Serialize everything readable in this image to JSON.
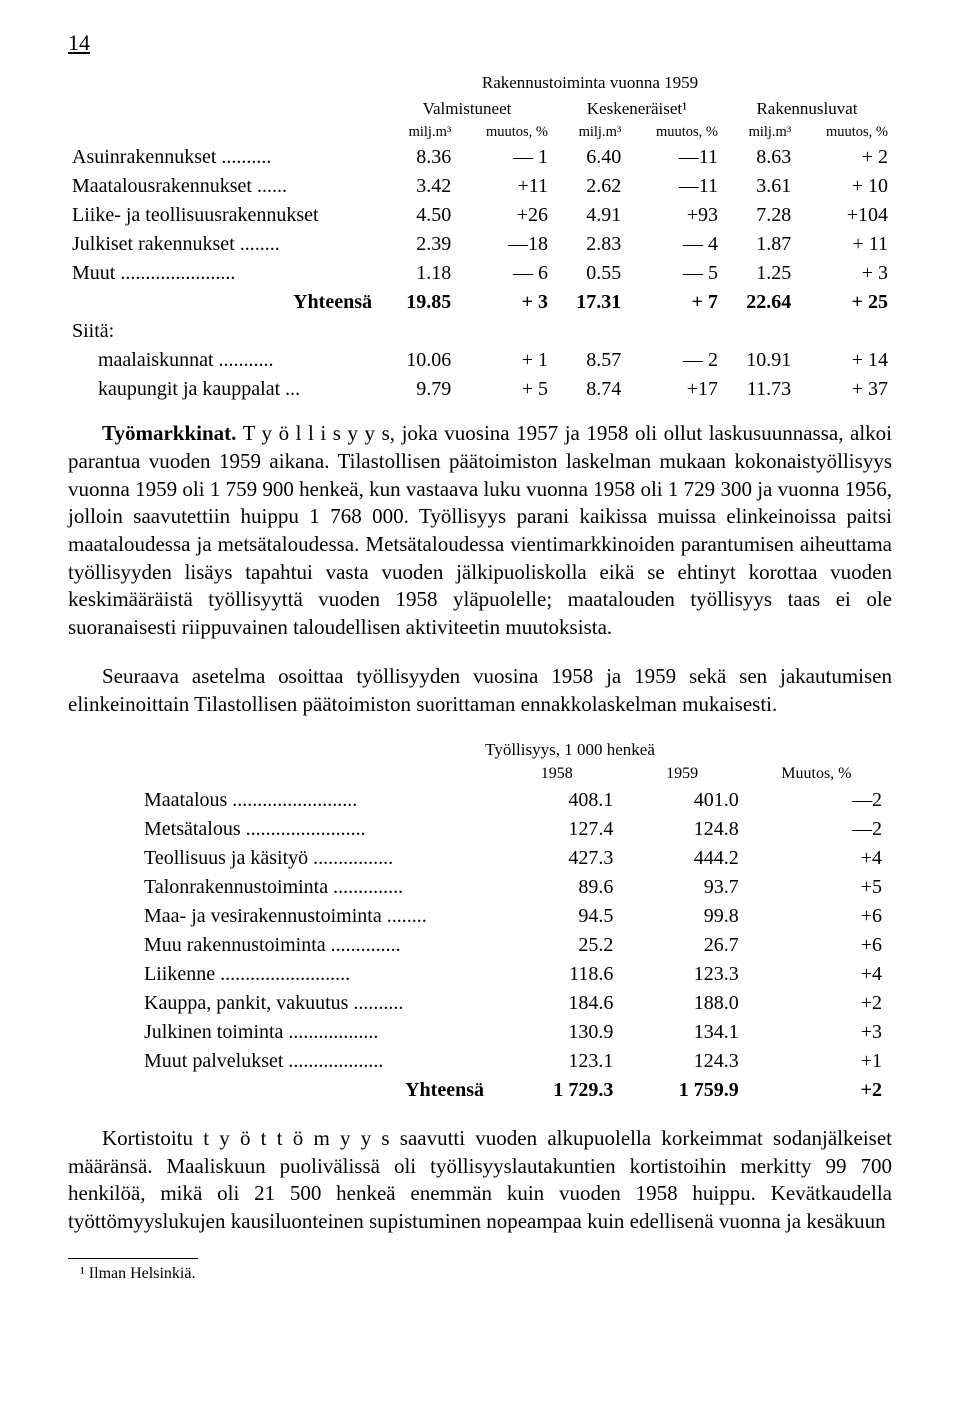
{
  "page_number": "14",
  "table1": {
    "super_title": "Rakennustoiminta vuonna 1959",
    "group_headers": [
      "Valmistuneet",
      "Keskeneräiset¹",
      "Rakennusluvat"
    ],
    "sub_headers": [
      "milj.m³",
      "muutos, %",
      "milj.m³",
      "muutos, %",
      "milj.m³",
      "muutos, %"
    ],
    "rows": [
      {
        "label": "Asuinrakennukset",
        "dots": " ..........",
        "v": [
          "8.36",
          "— 1",
          "6.40",
          "—11",
          "8.63",
          "+   2"
        ]
      },
      {
        "label": "Maatalousrakennukset",
        "dots": " ......",
        "v": [
          "3.42",
          "+11",
          "2.62",
          "—11",
          "3.61",
          "+  10"
        ]
      },
      {
        "label": "Liike- ja teollisuusrakennukset",
        "dots": "",
        "v": [
          "4.50",
          "+26",
          "4.91",
          "+93",
          "7.28",
          "+104"
        ]
      },
      {
        "label": "Julkiset rakennukset",
        "dots": " ........",
        "v": [
          "2.39",
          "—18",
          "2.83",
          "— 4",
          "1.87",
          "+  11"
        ]
      },
      {
        "label": "Muut",
        "dots": " .......................",
        "v": [
          "1.18",
          "— 6",
          "0.55",
          "— 5",
          "1.25",
          "+   3"
        ]
      }
    ],
    "total": {
      "label": "Yhteensä",
      "v": [
        "19.85",
        "+ 3",
        "17.31",
        "+ 7",
        "22.64",
        "+ 25"
      ]
    },
    "siita_label": "Siitä:",
    "siita_rows": [
      {
        "label": "maalaiskunnat",
        "dots": " ...........",
        "v": [
          "10.06",
          "+ 1",
          "8.57",
          "— 2",
          "10.91",
          "+ 14"
        ]
      },
      {
        "label": "kaupungit ja kauppalat",
        "dots": " ...",
        "v": [
          "9.79",
          "+ 5",
          "8.74",
          "+17",
          "11.73",
          "+ 37"
        ]
      }
    ]
  },
  "para1_lead": "Työmarkkinat.",
  "para1_spaced": "T y ö l l i s y y s,",
  "para1_rest": " joka vuosina 1957 ja 1958 oli ollut laskusuunnassa, alkoi parantua vuoden 1959 aikana. Tilastollisen päätoimiston laskelman mukaan kokonaistyöllisyys vuonna 1959 oli 1 759 900 henkeä, kun vastaava luku vuonna 1958 oli 1 729 300 ja vuonna 1956, jolloin saavutettiin huippu 1 768 000. Työllisyys parani kaikissa muissa elinkeinoissa paitsi maataloudessa ja metsätaloudessa. Metsätaloudessa vientimarkkinoiden parantumisen aiheuttama työllisyyden lisäys tapahtui vasta vuoden jälkipuoliskolla eikä se ehtinyt korottaa vuoden keskimääräistä työllisyyttä vuoden 1958 yläpuolelle; maatalouden työllisyys taas ei ole suoranaisesti riippuvainen taloudellisen aktiviteetin muutoksista.",
  "para2": "Seuraava asetelma osoittaa työllisyyden vuosina 1958 ja 1959 sekä sen jakautumisen elinkeinoittain Tilastollisen päätoimiston suorittaman ennakkolaskelman mukaisesti.",
  "table2": {
    "title": "Työllisyys, 1 000 henkeä",
    "headers": [
      "1958",
      "1959",
      "Muutos, %"
    ],
    "rows": [
      {
        "label": "Maatalous",
        "dots": " .........................",
        "v": [
          "408.1",
          "401.0",
          "—2"
        ]
      },
      {
        "label": "Metsätalous",
        "dots": " ........................",
        "v": [
          "127.4",
          "124.8",
          "—2"
        ]
      },
      {
        "label": "Teollisuus ja käsityö",
        "dots": " ................",
        "v": [
          "427.3",
          "444.2",
          "+4"
        ]
      },
      {
        "label": "Talonrakennustoiminta",
        "dots": " ..............",
        "v": [
          "89.6",
          "93.7",
          "+5"
        ]
      },
      {
        "label": "Maa- ja vesirakennustoiminta",
        "dots": " ........",
        "v": [
          "94.5",
          "99.8",
          "+6"
        ]
      },
      {
        "label": "Muu rakennustoiminta",
        "dots": " ..............",
        "v": [
          "25.2",
          "26.7",
          "+6"
        ]
      },
      {
        "label": "Liikenne",
        "dots": " ..........................",
        "v": [
          "118.6",
          "123.3",
          "+4"
        ]
      },
      {
        "label": "Kauppa, pankit, vakuutus",
        "dots": " ..........",
        "v": [
          "184.6",
          "188.0",
          "+2"
        ]
      },
      {
        "label": "Julkinen toiminta",
        "dots": " ..................",
        "v": [
          "130.9",
          "134.1",
          "+3"
        ]
      },
      {
        "label": "Muut palvelukset",
        "dots": " ...................",
        "v": [
          "123.1",
          "124.3",
          "+1"
        ]
      }
    ],
    "total": {
      "label": "Yhteensä",
      "v": [
        "1 729.3",
        "1 759.9",
        "+2"
      ]
    }
  },
  "para3_pre": "Kortistoitu ",
  "para3_spaced": "t y ö t t ö m y y s",
  "para3_rest": " saavutti vuoden alkupuolella korkeimmat sodanjälkeiset määränsä. Maaliskuun puolivälissä oli työllisyyslautakuntien kortistoihin merkitty 99 700 henkilöä, mikä oli 21 500 henkeä enemmän kuin vuoden 1958 huippu. Kevätkaudella työttömyyslukujen kausiluonteinen supistuminen nopeampaa kuin edellisenä vuonna ja kesäkuun",
  "footnote": "¹ Ilman Helsinkiä."
}
